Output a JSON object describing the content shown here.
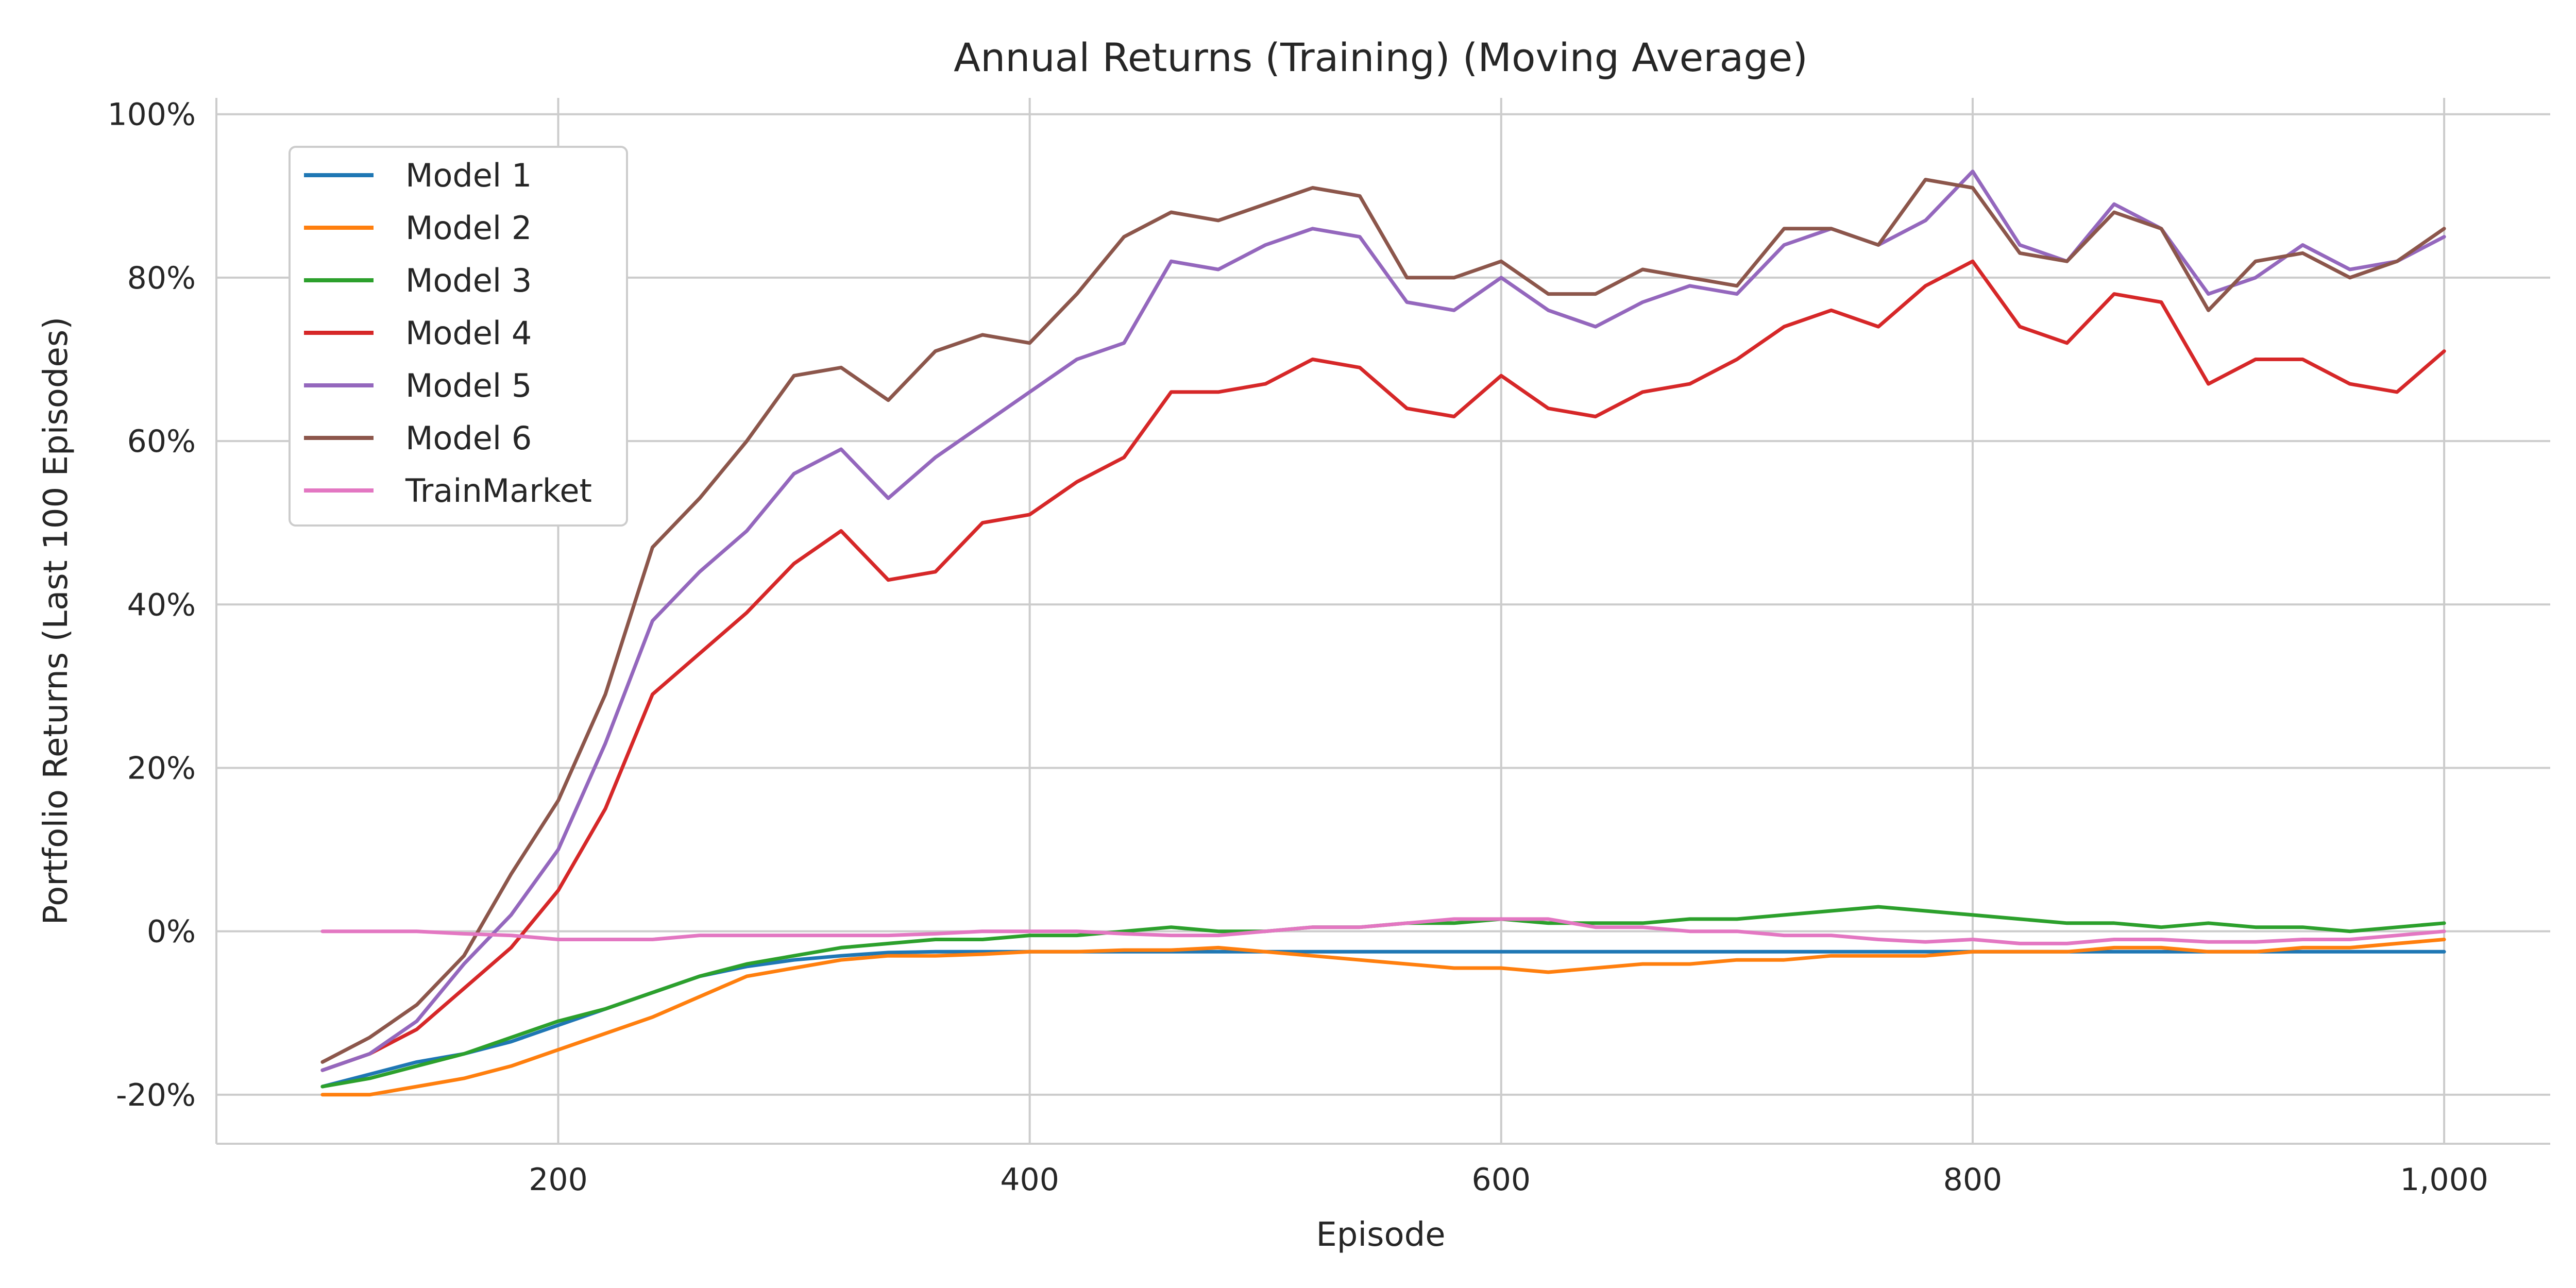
{
  "chart_data": {
    "type": "line",
    "title": "Annual Returns (Training) (Moving Average)",
    "xlabel": "Episode",
    "ylabel": "Portfolio Returns (Last 100 Episodes)",
    "xlim": [
      55,
      1045
    ],
    "ylim": [
      -26,
      102
    ],
    "xticks": [
      200,
      400,
      600,
      800,
      1000
    ],
    "xtick_labels": [
      "200",
      "400",
      "600",
      "800",
      "1,000"
    ],
    "yticks": [
      -20,
      0,
      20,
      40,
      60,
      80,
      100
    ],
    "ytick_labels": [
      "-20%",
      "0%",
      "20%",
      "40%",
      "60%",
      "80%",
      "100%"
    ],
    "grid": true,
    "legend_position": "top-left",
    "x": [
      100,
      120,
      140,
      160,
      180,
      200,
      220,
      240,
      260,
      280,
      300,
      320,
      340,
      360,
      380,
      400,
      420,
      440,
      460,
      480,
      500,
      520,
      540,
      560,
      580,
      600,
      620,
      640,
      660,
      680,
      700,
      720,
      740,
      760,
      780,
      800,
      820,
      840,
      860,
      880,
      900,
      920,
      940,
      960,
      980,
      1000
    ],
    "series": [
      {
        "name": "Model 1",
        "color": "#1f77b4",
        "values": [
          -19,
          -17.5,
          -16,
          -15,
          -13.5,
          -11.5,
          -9.5,
          -7.5,
          -5.5,
          -4.3,
          -3.5,
          -3,
          -2.6,
          -2.5,
          -2.5,
          -2.5,
          -2.5,
          -2.5,
          -2.5,
          -2.5,
          -2.5,
          -2.5,
          -2.5,
          -2.5,
          -2.5,
          -2.5,
          -2.5,
          -2.5,
          -2.5,
          -2.5,
          -2.5,
          -2.5,
          -2.5,
          -2.5,
          -2.5,
          -2.5,
          -2.5,
          -2.5,
          -2.5,
          -2.5,
          -2.5,
          -2.5,
          -2.5,
          -2.5,
          -2.5,
          -2.5
        ]
      },
      {
        "name": "Model 2",
        "color": "#ff7f0e",
        "values": [
          -20,
          -20,
          -19,
          -18,
          -16.5,
          -14.5,
          -12.5,
          -10.5,
          -8,
          -5.5,
          -4.5,
          -3.5,
          -3,
          -3,
          -2.8,
          -2.5,
          -2.5,
          -2.3,
          -2.3,
          -2,
          -2.5,
          -3,
          -3.5,
          -4,
          -4.5,
          -4.5,
          -5,
          -4.5,
          -4,
          -4,
          -3.5,
          -3.5,
          -3,
          -3,
          -3,
          -2.5,
          -2.5,
          -2.5,
          -2,
          -2,
          -2.5,
          -2.5,
          -2,
          -2,
          -1.5,
          -1
        ]
      },
      {
        "name": "Model 3",
        "color": "#2ca02c",
        "values": [
          -19,
          -18,
          -16.5,
          -15,
          -13,
          -11,
          -9.5,
          -7.5,
          -5.5,
          -4,
          -3,
          -2,
          -1.5,
          -1,
          -1,
          -0.5,
          -0.5,
          0,
          0.5,
          0,
          0,
          0.5,
          0.5,
          1,
          1,
          1.5,
          1,
          1,
          1,
          1.5,
          1.5,
          2,
          2.5,
          3,
          2.5,
          2,
          1.5,
          1,
          1,
          0.5,
          1,
          0.5,
          0.5,
          0,
          0.5,
          1
        ]
      },
      {
        "name": "Model 4",
        "color": "#d62728",
        "values": [
          -17,
          -15,
          -12,
          -7,
          -2,
          5,
          15,
          29,
          34,
          39,
          45,
          49,
          43,
          44,
          50,
          51,
          55,
          58,
          66,
          66,
          67,
          70,
          69,
          64,
          63,
          68,
          64,
          63,
          66,
          67,
          70,
          74,
          76,
          74,
          79,
          82,
          74,
          72,
          78,
          77,
          67,
          70,
          70,
          67,
          66,
          71
        ]
      },
      {
        "name": "Model 5",
        "color": "#9467bd",
        "values": [
          -17,
          -15,
          -11,
          -4,
          2,
          10,
          23,
          38,
          44,
          49,
          56,
          59,
          53,
          58,
          62,
          66,
          70,
          72,
          82,
          81,
          84,
          86,
          85,
          77,
          76,
          80,
          76,
          74,
          77,
          79,
          78,
          84,
          86,
          84,
          87,
          93,
          84,
          82,
          89,
          86,
          78,
          80,
          84,
          81,
          82,
          85
        ]
      },
      {
        "name": "Model 6",
        "color": "#8c564b",
        "values": [
          -16,
          -13,
          -9,
          -3,
          7,
          16,
          29,
          47,
          53,
          60,
          68,
          69,
          65,
          71,
          73,
          72,
          78,
          85,
          88,
          87,
          89,
          91,
          90,
          80,
          80,
          82,
          78,
          78,
          81,
          80,
          79,
          86,
          86,
          84,
          92,
          91,
          83,
          82,
          88,
          86,
          76,
          82,
          83,
          80,
          82,
          86
        ]
      },
      {
        "name": "TrainMarket",
        "color": "#e377c2",
        "values": [
          0,
          0,
          0,
          -0.3,
          -0.5,
          -1,
          -1,
          -1,
          -0.5,
          -0.5,
          -0.5,
          -0.5,
          -0.5,
          -0.3,
          0,
          0,
          0,
          -0.3,
          -0.5,
          -0.5,
          0,
          0.5,
          0.5,
          1,
          1.5,
          1.5,
          1.5,
          0.5,
          0.5,
          0,
          0,
          -0.5,
          -0.5,
          -1,
          -1.3,
          -1,
          -1.5,
          -1.5,
          -1,
          -1,
          -1.3,
          -1.3,
          -1,
          -1,
          -0.5,
          0
        ]
      }
    ]
  }
}
